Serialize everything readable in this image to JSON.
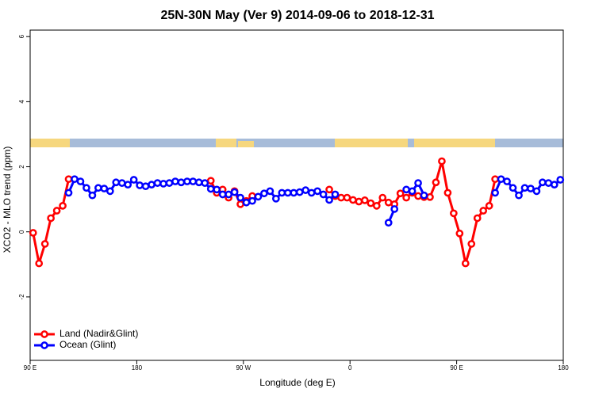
{
  "chart_data": {
    "type": "line",
    "title": "25N-30N May (Ver 9)   2014-09-06 to 2018-12-31",
    "x_label": "Longitude (deg E)",
    "y_label": "XCO2 - MLO trend (ppm)",
    "x": [
      92.5,
      97.5,
      102.5,
      107.5,
      112.5,
      117.5,
      122.5,
      127.5,
      132.5,
      137.5,
      142.5,
      147.5,
      152.5,
      157.5,
      162.5,
      167.5,
      172.5,
      177.5,
      182.5,
      187.5,
      192.5,
      197.5,
      202.5,
      207.5,
      212.5,
      217.5,
      222.5,
      227.5,
      232.5,
      237.5,
      242.5,
      247.5,
      252.5,
      257.5,
      262.5,
      267.5,
      272.5,
      277.5,
      282.5,
      287.5,
      292.5,
      297.5,
      302.5,
      307.5,
      312.5,
      317.5,
      322.5,
      327.5,
      332.5,
      337.5,
      342.5,
      347.5,
      352.5,
      357.5,
      362.5,
      367.5,
      372.5,
      377.5,
      382.5,
      387.5,
      392.5,
      397.5,
      402.5,
      407.5,
      412.5,
      417.5,
      422.5,
      427.5,
      432.5,
      437.5,
      442.5,
      447.5,
      452.5,
      457.5,
      462.5,
      467.5,
      472.5,
      477.5,
      482.5,
      487.5,
      492.5,
      497.5,
      502.5,
      507.5,
      512.5,
      517.5,
      522.5,
      527.5,
      532.5,
      537.5
    ],
    "series": [
      {
        "name": "Land (Nadir&Glint)",
        "color": "#ff0000",
        "values": [
          -0.03,
          -0.97,
          -0.37,
          0.42,
          0.65,
          0.8,
          1.62,
          null,
          null,
          null,
          null,
          null,
          null,
          null,
          null,
          null,
          null,
          null,
          null,
          null,
          null,
          null,
          null,
          null,
          null,
          null,
          null,
          null,
          null,
          null,
          1.57,
          1.2,
          1.3,
          1.05,
          1.25,
          0.85,
          0.95,
          1.1,
          null,
          null,
          null,
          null,
          null,
          null,
          null,
          null,
          null,
          null,
          null,
          null,
          1.3,
          1.1,
          1.05,
          1.05,
          0.98,
          0.93,
          0.97,
          0.88,
          0.8,
          1.05,
          0.9,
          0.85,
          1.18,
          1.05,
          1.2,
          1.1,
          1.07,
          1.07,
          1.52,
          2.17,
          1.2,
          0.57,
          -0.05,
          -0.97,
          -0.37,
          0.42,
          0.65,
          0.8,
          1.62,
          null,
          null,
          null,
          null,
          null,
          null,
          null,
          null,
          null,
          null,
          null
        ]
      },
      {
        "name": "Ocean (Glint)",
        "color": "#0000ff",
        "values": [
          null,
          null,
          null,
          null,
          null,
          null,
          1.2,
          1.62,
          1.55,
          1.35,
          1.12,
          1.35,
          1.33,
          1.25,
          1.52,
          1.5,
          1.45,
          1.6,
          1.43,
          1.4,
          1.45,
          1.5,
          1.48,
          1.5,
          1.55,
          1.52,
          1.55,
          1.55,
          1.52,
          1.5,
          1.32,
          1.3,
          1.15,
          1.15,
          1.22,
          1.05,
          0.9,
          0.95,
          1.08,
          1.18,
          1.25,
          1.02,
          1.2,
          1.2,
          1.2,
          1.22,
          1.28,
          1.2,
          1.25,
          1.15,
          0.98,
          1.15,
          null,
          null,
          null,
          null,
          null,
          null,
          null,
          null,
          0.28,
          0.7,
          null,
          1.3,
          1.25,
          1.5,
          1.12,
          null,
          null,
          null,
          null,
          null,
          null,
          null,
          null,
          null,
          null,
          null,
          1.2,
          1.62,
          1.55,
          1.35,
          1.12,
          1.35,
          1.33,
          1.25,
          1.52,
          1.5,
          1.45,
          1.6
        ]
      }
    ],
    "xlim": [
      90,
      540
    ],
    "xticks": [
      {
        "value": 90,
        "label": "90 E"
      },
      {
        "value": 180,
        "label": "180"
      },
      {
        "value": 270,
        "label": "90 W"
      },
      {
        "value": 360,
        "label": "0"
      },
      {
        "value": 450,
        "label": "90 E"
      },
      {
        "value": 540,
        "label": "180"
      }
    ],
    "ylim": [
      -3.95,
      6.2
    ],
    "yticks": [
      -2,
      0,
      2,
      4,
      6
    ],
    "legend": "bottom-left"
  }
}
